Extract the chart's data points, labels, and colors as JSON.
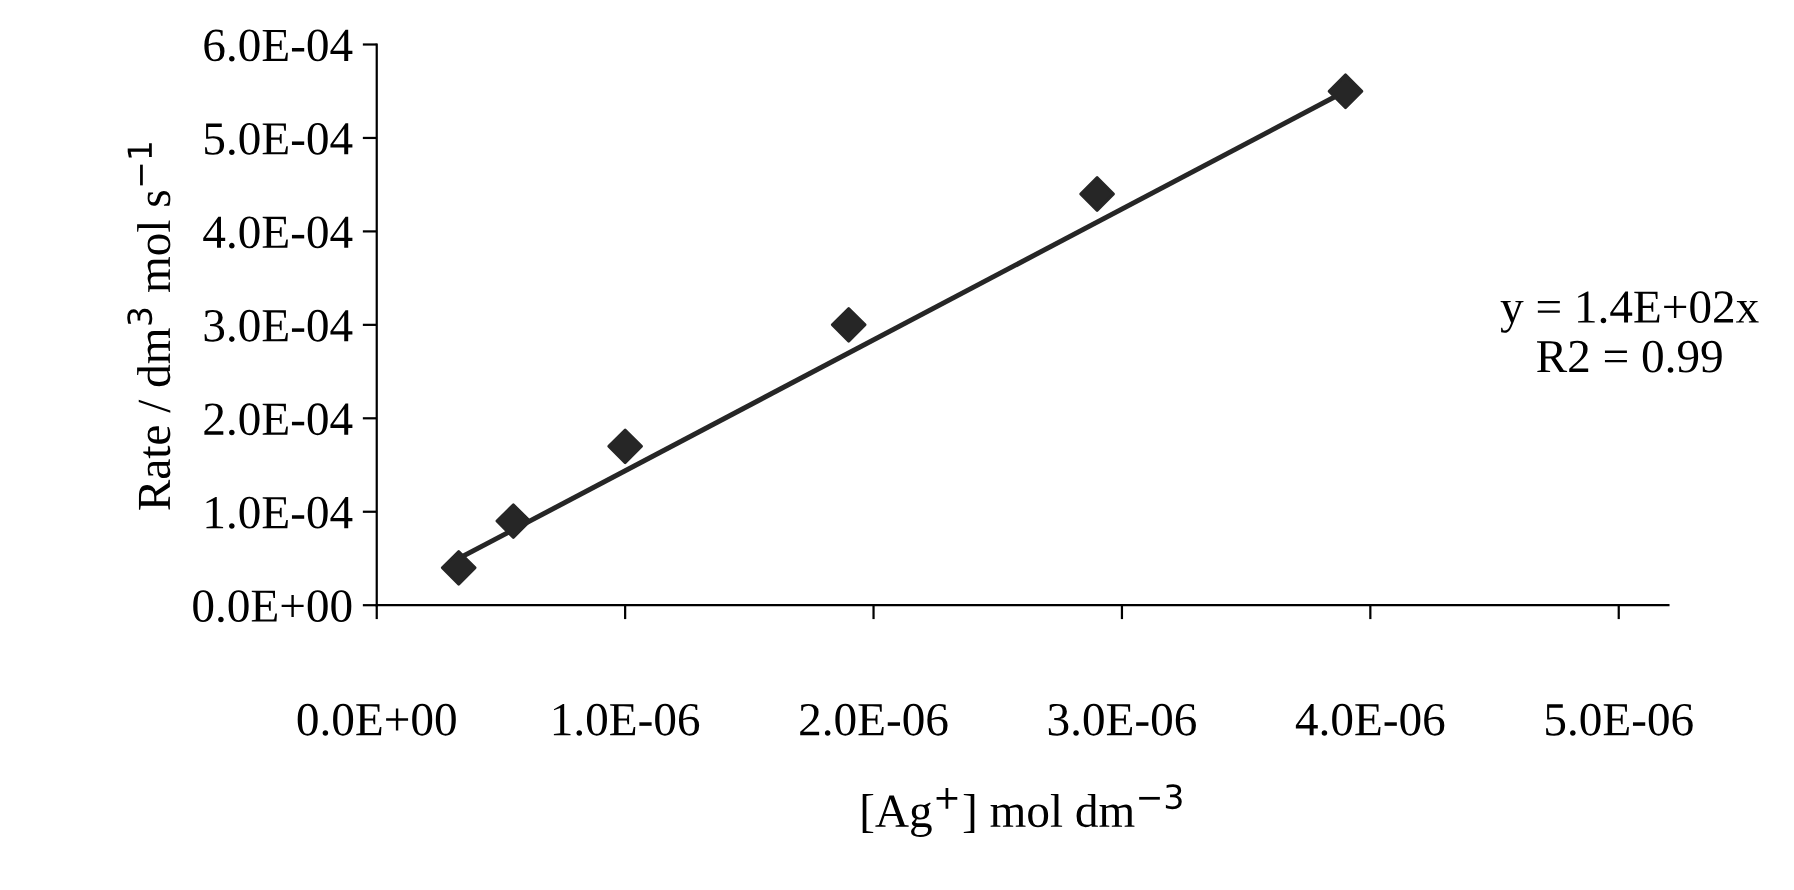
{
  "chart_data": {
    "type": "scatter",
    "xlabel": "[Ag$^{+}$] mol dm$^{−3}$",
    "ylabel": "Rate / dm$^{3}$ mol s$^{−1}$",
    "annotations": [
      "y = 1.4E+02x\nR2 = 0.99"
    ],
    "series": [
      {
        "color": "#262626",
        "marker": "diamond",
        "x": [
          3.3e-07,
          5.5e-07,
          1e-06,
          1.9e-06,
          2.9e-06,
          3.9e-06
        ],
        "values": [
          4e-05,
          9e-05,
          0.00017,
          0.0003,
          0.00044,
          0.00055
        ]
      },
      {
        "type": "line",
        "color": "#262626",
        "line_style": "solid",
        "marker": "none",
        "x": [
          3.3e-07,
          3.9e-06
        ],
        "values": [
          5e-05,
          0.00055
        ]
      }
    ],
    "xlim": [
      0,
      5.2e-06
    ],
    "ylim": [
      0,
      0.0006
    ],
    "xticks": [
      {
        "value": 0,
        "label": "0.0E+00"
      },
      {
        "value": 1e-06,
        "label": "1.0E-06"
      },
      {
        "value": 2e-06,
        "label": "2.0E-06"
      },
      {
        "value": 3e-06,
        "label": "3.0E-06"
      },
      {
        "value": 4e-06,
        "label": "4.0E-06"
      },
      {
        "value": 5e-06,
        "label": "5.0E-06"
      }
    ],
    "yticks": [
      {
        "value": 0,
        "label": "0.0E+00"
      },
      {
        "value": 0.0001,
        "label": "1.0E-04"
      },
      {
        "value": 0.0002,
        "label": "2.0E-04"
      },
      {
        "value": 0.0003,
        "label": "3.0E-04"
      },
      {
        "value": 0.0004,
        "label": "4.0E-04"
      },
      {
        "value": 0.0005,
        "label": "5.0E-04"
      },
      {
        "value": 0.0006,
        "label": "6.0E-04"
      }
    ],
    "grid": false,
    "legend": false
  }
}
